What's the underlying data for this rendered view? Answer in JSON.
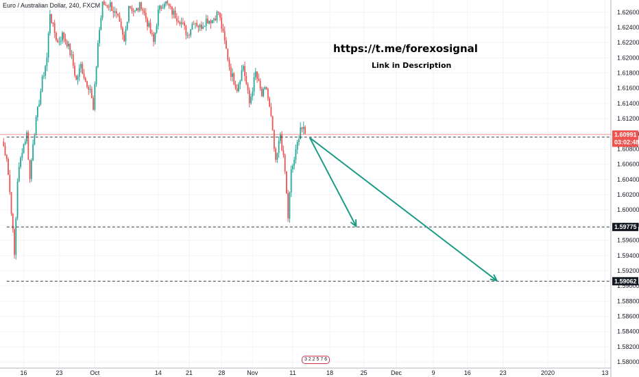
{
  "chart_data": {
    "type": "candlestick",
    "symbol": "Euro / Australian Dollar, 240, FXCM",
    "overlay_title": "https://t.me/forexosignal",
    "overlay_subtitle": "Link in Description",
    "ylim": [
      1.5792,
      1.6276
    ],
    "yticks": [
      "1.62600",
      "1.62400",
      "1.62200",
      "1.62000",
      "1.61800",
      "1.61600",
      "1.61400",
      "1.61200",
      "1.61000",
      "1.60800",
      "1.60600",
      "1.60400",
      "1.60200",
      "1.60000",
      "1.59800",
      "1.59600",
      "1.59400",
      "1.59200",
      "1.59000",
      "1.58800",
      "1.58600",
      "1.58400",
      "1.58200",
      "1.58000"
    ],
    "x_ticks": [
      {
        "label": "16",
        "i": 14
      },
      {
        "label": "23",
        "i": 37
      },
      {
        "label": "Oct",
        "i": 60
      },
      {
        "label": "14",
        "i": 101
      },
      {
        "label": "21",
        "i": 121
      },
      {
        "label": "28",
        "i": 142
      },
      {
        "label": "Nov",
        "i": 162
      },
      {
        "label": "11",
        "i": 188
      },
      {
        "label": "18",
        "i": 212
      },
      {
        "label": "25",
        "i": 234
      },
      {
        "label": "Dec",
        "i": 255
      },
      {
        "label": "9",
        "i": 279
      },
      {
        "label": "16",
        "i": 301
      },
      {
        "label": "23",
        "i": 324
      },
      {
        "label": "2020",
        "i": 353
      },
      {
        "label": "13",
        "i": 390
      }
    ],
    "keypoints": [
      [
        0,
        1.609
      ],
      [
        3,
        1.607
      ],
      [
        6,
        1.6
      ],
      [
        8,
        1.594
      ],
      [
        10,
        1.604
      ],
      [
        13,
        1.608
      ],
      [
        16,
        1.61
      ],
      [
        18,
        1.604
      ],
      [
        20,
        1.609
      ],
      [
        23,
        1.613
      ],
      [
        26,
        1.617
      ],
      [
        29,
        1.62
      ],
      [
        31,
        1.626
      ],
      [
        33,
        1.624
      ],
      [
        36,
        1.622
      ],
      [
        39,
        1.623
      ],
      [
        42,
        1.622
      ],
      [
        45,
        1.62
      ],
      [
        48,
        1.617
      ],
      [
        51,
        1.619
      ],
      [
        54,
        1.617
      ],
      [
        57,
        1.616
      ],
      [
        59,
        1.613
      ],
      [
        62,
        1.622
      ],
      [
        65,
        1.627
      ],
      [
        70,
        1.627
      ],
      [
        75,
        1.625
      ],
      [
        79,
        1.622
      ],
      [
        82,
        1.627
      ],
      [
        86,
        1.626
      ],
      [
        90,
        1.627
      ],
      [
        95,
        1.624
      ],
      [
        98,
        1.622
      ],
      [
        101,
        1.626
      ],
      [
        105,
        1.6275
      ],
      [
        110,
        1.626
      ],
      [
        115,
        1.625
      ],
      [
        120,
        1.623
      ],
      [
        124,
        1.625
      ],
      [
        128,
        1.624
      ],
      [
        132,
        1.625
      ],
      [
        136,
        1.625
      ],
      [
        140,
        1.626
      ],
      [
        144,
        1.622
      ],
      [
        148,
        1.618
      ],
      [
        152,
        1.616
      ],
      [
        156,
        1.619
      ],
      [
        160,
        1.614
      ],
      [
        164,
        1.618
      ],
      [
        168,
        1.615
      ],
      [
        171,
        1.616
      ],
      [
        174,
        1.612
      ],
      [
        177,
        1.606
      ],
      [
        180,
        1.61
      ],
      [
        183,
        1.605
      ],
      [
        185,
        1.599
      ],
      [
        187,
        1.605
      ],
      [
        190,
        1.6075
      ],
      [
        193,
        1.611
      ],
      [
        196,
        1.61
      ]
    ],
    "last_candle_index": 196,
    "horizontal_levels": [
      {
        "value": 1.60957,
        "label": "1.60957",
        "style": "dashed"
      },
      {
        "value": 1.59775,
        "label": "1.59775",
        "style": "dashed"
      },
      {
        "value": 1.59062,
        "label": "1.59062",
        "style": "dashed"
      }
    ],
    "current_price": {
      "value": 1.60991,
      "label": "1.60991",
      "countdown": "03:02:48",
      "color": "#ef5350"
    },
    "arrows": [
      {
        "from": [
          199,
          1.6095
        ],
        "to": [
          229,
          1.59785
        ],
        "color": "#1a9a84"
      },
      {
        "from": [
          199,
          1.6095
        ],
        "to": [
          320,
          1.5907
        ],
        "color": "#1a9a84"
      }
    ],
    "colors": {
      "up": "#26a69a",
      "down": "#ef5350",
      "grid": "#f0f3fa",
      "axis": "#b2b5be",
      "level": "#333333",
      "tag": "#131722"
    }
  },
  "playbar": {
    "label": "3 2 2 5 7 6"
  }
}
